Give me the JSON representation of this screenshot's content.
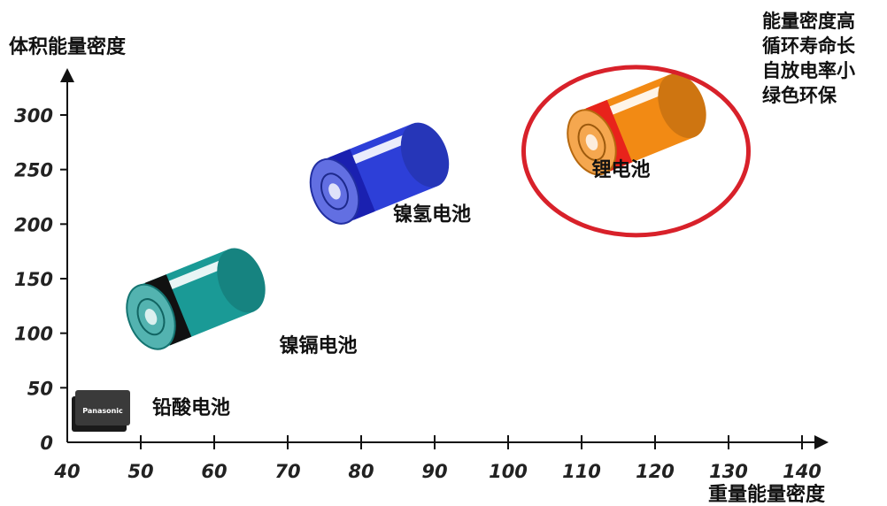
{
  "chart_data": {
    "type": "scatter",
    "xlabel": "重量能量密度",
    "ylabel": "体积能量密度",
    "x_ticks": [
      40,
      50,
      60,
      70,
      80,
      90,
      100,
      110,
      120,
      130,
      140
    ],
    "y_ticks": [
      0,
      50,
      100,
      150,
      200,
      250,
      300
    ],
    "xlim": [
      40,
      140
    ],
    "ylim": [
      0,
      300
    ],
    "points": [
      {
        "label": "铅酸电池",
        "x": 40,
        "y": 30,
        "color": "#1a1a1a"
      },
      {
        "label": "镍镉电池",
        "x": 55,
        "y": 115,
        "color": "#1a9a96"
      },
      {
        "label": "镍氢电池",
        "x": 80,
        "y": 230,
        "color": "#2d3fd8"
      },
      {
        "label": "锂电池",
        "x": 115,
        "y": 275,
        "color": "#f28a14"
      }
    ],
    "highlight": {
      "label": "锂电池",
      "color": "#d8212a"
    },
    "battery_brand": "Panasonic",
    "notes": [
      "能量密度高",
      "循环寿命长",
      "自放电率小",
      "绿色环保"
    ]
  }
}
